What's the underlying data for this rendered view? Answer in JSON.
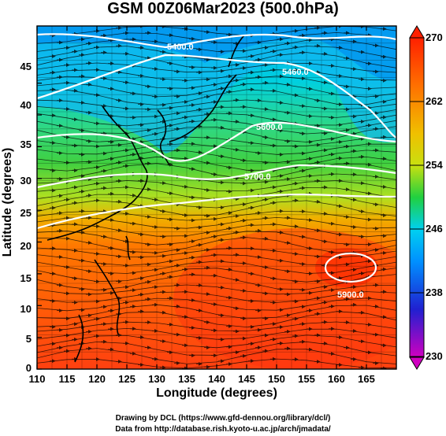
{
  "title": "GSM 00Z06Mar2023 (500.0hPa)",
  "x_axis": {
    "label": "Longitude (degrees)",
    "ticks": [
      "110",
      "115",
      "120",
      "125",
      "130",
      "135",
      "140",
      "145",
      "150",
      "155",
      "160",
      "165"
    ],
    "range": [
      110,
      170
    ]
  },
  "y_axis": {
    "label": "Latitude  (degrees)",
    "ticks": [
      "0",
      "5",
      "10",
      "15",
      "20",
      "25",
      "30",
      "35",
      "40",
      "45"
    ],
    "range": [
      0,
      50
    ]
  },
  "colorbar": {
    "ticks": [
      "270",
      "262",
      "254",
      "246",
      "238",
      "230"
    ],
    "range": [
      230,
      270
    ],
    "colors": [
      "#d000c0",
      "#2020d0",
      "#0090ff",
      "#00d0f0",
      "#20d040",
      "#c8e010",
      "#f0c000",
      "#ff7000",
      "#ff2000"
    ]
  },
  "contours": [
    {
      "label": "5400.0"
    },
    {
      "label": "5460.0"
    },
    {
      "label": "5600.0"
    },
    {
      "label": "5700.0"
    },
    {
      "label": "5900.0"
    }
  ],
  "credits": {
    "line1": "Drawing by DCL (https://www.gfd-dennou.org/library/dcl/)",
    "line2": "Data from http://database.rish.kyoto-u.ac.jp/arch/jmadata/"
  }
}
